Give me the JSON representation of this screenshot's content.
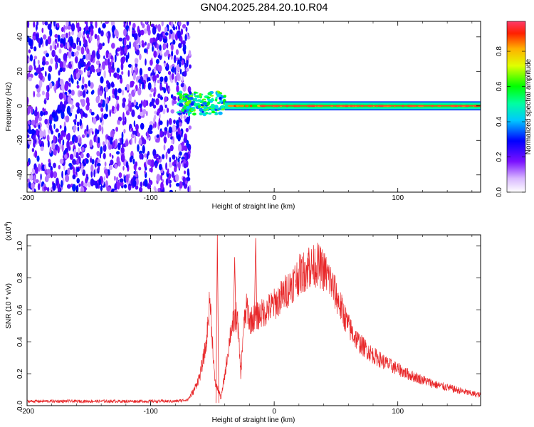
{
  "title": "GN04.2025.284.20.10.R04",
  "chart_data": [
    {
      "type": "heatmap",
      "xlabel": "Height of straight line (km)",
      "ylabel": "Frequency (Hz)",
      "xlim": [
        -200,
        167
      ],
      "ylim": [
        -50,
        49
      ],
      "xticks": [
        "-200",
        "-100",
        "0",
        "100"
      ],
      "yticks": [
        "-40",
        "-20",
        "0",
        "20",
        "40"
      ],
      "colorbar": {
        "label": "Normalized spectral amplitude",
        "range": [
          0,
          0.97
        ],
        "ticks": [
          "0.0",
          "0.2",
          "0.4",
          "0.6",
          "0.8"
        ]
      },
      "regions": [
        {
          "name": "noise",
          "x": [
            -200,
            -68
          ],
          "freq": [
            -50,
            49
          ],
          "level": 0.2
        },
        {
          "name": "onset",
          "x": [
            -78,
            -40
          ],
          "freq": [
            -5,
            8
          ],
          "level": 0.6
        },
        {
          "name": "tone",
          "x": [
            -40,
            167
          ],
          "freq": [
            -2,
            2
          ],
          "level": 0.95
        }
      ],
      "grid": false
    },
    {
      "type": "line",
      "xlabel": "Height of straight line (km)",
      "ylabel": "SNR (10 * v/v)",
      "yscale_note": "(x10",
      "yscale_exp": "4",
      "ylabel_close": ")",
      "xlim": [
        -200,
        167
      ],
      "ylim": [
        0,
        1.07
      ],
      "xticks": [
        "-200",
        "-100",
        "0",
        "100"
      ],
      "yticks": [
        "0.0",
        "0.2",
        "0.4",
        "0.6",
        "0.8",
        "1.0"
      ],
      "series_color": "#e8282a",
      "envelope": {
        "x": [
          -200,
          -80,
          -70,
          -65,
          -60,
          -55,
          -52,
          -48,
          -45,
          -43,
          -40,
          -35,
          -30,
          -27,
          -25,
          -22,
          -20,
          -15,
          -10,
          -5,
          0,
          5,
          10,
          15,
          20,
          25,
          30,
          35,
          40,
          45,
          50,
          55,
          60,
          65,
          70,
          80,
          90,
          100,
          110,
          120,
          130,
          140,
          150,
          160,
          167
        ],
        "y": [
          0.03,
          0.03,
          0.04,
          0.1,
          0.2,
          0.4,
          0.7,
          0.15,
          0.1,
          0.05,
          0.2,
          0.5,
          0.6,
          0.2,
          0.5,
          0.65,
          0.55,
          0.58,
          0.6,
          0.63,
          0.66,
          0.7,
          0.75,
          0.8,
          0.85,
          0.88,
          0.9,
          0.92,
          0.88,
          0.82,
          0.72,
          0.62,
          0.52,
          0.45,
          0.4,
          0.33,
          0.28,
          0.24,
          0.2,
          0.17,
          0.14,
          0.12,
          0.1,
          0.08,
          0.07
        ]
      },
      "spikes": [
        {
          "x": -46,
          "y": 1.07
        },
        {
          "x": -32,
          "y": 0.93
        },
        {
          "x": -15,
          "y": 1.05
        },
        {
          "x": 28,
          "y": 0.99
        }
      ]
    }
  ]
}
